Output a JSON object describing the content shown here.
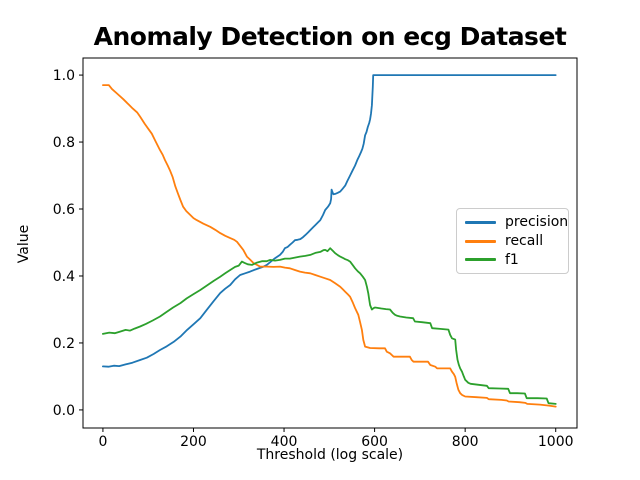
{
  "chart_data": {
    "type": "line",
    "title": "Anomaly Detection on ecg Dataset",
    "xlabel": "Threshold (log scale)",
    "ylabel": "Value",
    "xlim": [
      -44,
      1047
    ],
    "ylim": [
      -0.054,
      1.051
    ],
    "x_ticks": [
      0,
      200,
      400,
      600,
      800,
      1000
    ],
    "y_ticks": [
      0.0,
      0.2,
      0.4,
      0.6,
      0.8,
      1.0
    ],
    "grid": false,
    "legend": {
      "position": "center right",
      "entries": [
        "precision",
        "recall",
        "f1"
      ]
    },
    "series": [
      {
        "name": "precision",
        "color": "#1f77b4",
        "points": [
          [
            0,
            0.13
          ],
          [
            12,
            0.129
          ],
          [
            24,
            0.132
          ],
          [
            36,
            0.131
          ],
          [
            50,
            0.136
          ],
          [
            65,
            0.141
          ],
          [
            82,
            0.149
          ],
          [
            97,
            0.156
          ],
          [
            112,
            0.167
          ],
          [
            126,
            0.179
          ],
          [
            141,
            0.19
          ],
          [
            156,
            0.203
          ],
          [
            171,
            0.219
          ],
          [
            186,
            0.239
          ],
          [
            201,
            0.257
          ],
          [
            215,
            0.274
          ],
          [
            229,
            0.298
          ],
          [
            244,
            0.324
          ],
          [
            259,
            0.349
          ],
          [
            270,
            0.362
          ],
          [
            281,
            0.373
          ],
          [
            292,
            0.39
          ],
          [
            303,
            0.403
          ],
          [
            314,
            0.408
          ],
          [
            325,
            0.413
          ],
          [
            336,
            0.419
          ],
          [
            347,
            0.424
          ],
          [
            355,
            0.428
          ],
          [
            362,
            0.433
          ],
          [
            371,
            0.443
          ],
          [
            380,
            0.453
          ],
          [
            391,
            0.463
          ],
          [
            397,
            0.472
          ],
          [
            402,
            0.483
          ],
          [
            408,
            0.487
          ],
          [
            413,
            0.493
          ],
          [
            419,
            0.5
          ],
          [
            424,
            0.507
          ],
          [
            430,
            0.508
          ],
          [
            436,
            0.51
          ],
          [
            442,
            0.516
          ],
          [
            447,
            0.522
          ],
          [
            453,
            0.53
          ],
          [
            458,
            0.537
          ],
          [
            464,
            0.545
          ],
          [
            469,
            0.552
          ],
          [
            475,
            0.56
          ],
          [
            480,
            0.567
          ],
          [
            486,
            0.582
          ],
          [
            491,
            0.597
          ],
          [
            497,
            0.607
          ],
          [
            502,
            0.617
          ],
          [
            504,
            0.63
          ],
          [
            505,
            0.658
          ],
          [
            507,
            0.65
          ],
          [
            509,
            0.644
          ],
          [
            513,
            0.645
          ],
          [
            518,
            0.648
          ],
          [
            524,
            0.652
          ],
          [
            529,
            0.66
          ],
          [
            535,
            0.67
          ],
          [
            540,
            0.684
          ],
          [
            546,
            0.7
          ],
          [
            551,
            0.714
          ],
          [
            557,
            0.73
          ],
          [
            562,
            0.747
          ],
          [
            566,
            0.758
          ],
          [
            570,
            0.77
          ],
          [
            573,
            0.78
          ],
          [
            576,
            0.795
          ],
          [
            579,
            0.82
          ],
          [
            582,
            0.83
          ],
          [
            585,
            0.845
          ],
          [
            588,
            0.857
          ],
          [
            590,
            0.868
          ],
          [
            592,
            0.885
          ],
          [
            594,
            0.91
          ],
          [
            595,
            0.935
          ],
          [
            596,
            0.965
          ],
          [
            597,
            1.0
          ],
          [
            650,
            1.0
          ],
          [
            750,
            1.0
          ],
          [
            850,
            1.0
          ],
          [
            950,
            1.0
          ],
          [
            1000,
            1.0
          ]
        ]
      },
      {
        "name": "recall",
        "color": "#ff7f0e",
        "points": [
          [
            0,
            0.97
          ],
          [
            13,
            0.97
          ],
          [
            20,
            0.958
          ],
          [
            31,
            0.945
          ],
          [
            45,
            0.928
          ],
          [
            57,
            0.912
          ],
          [
            66,
            0.9
          ],
          [
            76,
            0.888
          ],
          [
            82,
            0.876
          ],
          [
            92,
            0.855
          ],
          [
            100,
            0.84
          ],
          [
            108,
            0.825
          ],
          [
            117,
            0.8
          ],
          [
            126,
            0.776
          ],
          [
            132,
            0.762
          ],
          [
            137,
            0.746
          ],
          [
            143,
            0.73
          ],
          [
            148,
            0.716
          ],
          [
            154,
            0.695
          ],
          [
            160,
            0.667
          ],
          [
            166,
            0.645
          ],
          [
            171,
            0.627
          ],
          [
            177,
            0.607
          ],
          [
            184,
            0.594
          ],
          [
            193,
            0.582
          ],
          [
            200,
            0.573
          ],
          [
            207,
            0.567
          ],
          [
            222,
            0.556
          ],
          [
            237,
            0.547
          ],
          [
            248,
            0.538
          ],
          [
            259,
            0.528
          ],
          [
            270,
            0.52
          ],
          [
            281,
            0.513
          ],
          [
            290,
            0.508
          ],
          [
            296,
            0.502
          ],
          [
            303,
            0.49
          ],
          [
            310,
            0.478
          ],
          [
            318,
            0.458
          ],
          [
            325,
            0.449
          ],
          [
            332,
            0.439
          ],
          [
            340,
            0.433
          ],
          [
            347,
            0.428
          ],
          [
            362,
            0.428
          ],
          [
            377,
            0.427
          ],
          [
            391,
            0.428
          ],
          [
            402,
            0.425
          ],
          [
            413,
            0.423
          ],
          [
            424,
            0.418
          ],
          [
            435,
            0.413
          ],
          [
            446,
            0.41
          ],
          [
            458,
            0.408
          ],
          [
            469,
            0.403
          ],
          [
            480,
            0.398
          ],
          [
            491,
            0.393
          ],
          [
            502,
            0.388
          ],
          [
            513,
            0.378
          ],
          [
            524,
            0.368
          ],
          [
            530,
            0.36
          ],
          [
            535,
            0.353
          ],
          [
            541,
            0.345
          ],
          [
            546,
            0.338
          ],
          [
            552,
            0.32
          ],
          [
            557,
            0.304
          ],
          [
            564,
            0.284
          ],
          [
            568,
            0.262
          ],
          [
            572,
            0.239
          ],
          [
            575,
            0.209
          ],
          [
            579,
            0.189
          ],
          [
            590,
            0.185
          ],
          [
            610,
            0.184
          ],
          [
            623,
            0.184
          ],
          [
            627,
            0.174
          ],
          [
            634,
            0.169
          ],
          [
            638,
            0.164
          ],
          [
            642,
            0.159
          ],
          [
            660,
            0.159
          ],
          [
            678,
            0.159
          ],
          [
            682,
            0.149
          ],
          [
            686,
            0.144
          ],
          [
            700,
            0.144
          ],
          [
            718,
            0.144
          ],
          [
            723,
            0.134
          ],
          [
            734,
            0.129
          ],
          [
            738,
            0.124
          ],
          [
            755,
            0.124
          ],
          [
            767,
            0.124
          ],
          [
            771,
            0.114
          ],
          [
            775,
            0.107
          ],
          [
            778,
            0.099
          ],
          [
            781,
            0.08
          ],
          [
            785,
            0.06
          ],
          [
            789,
            0.05
          ],
          [
            793,
            0.045
          ],
          [
            800,
            0.04
          ],
          [
            825,
            0.038
          ],
          [
            848,
            0.036
          ],
          [
            852,
            0.032
          ],
          [
            880,
            0.03
          ],
          [
            892,
            0.028
          ],
          [
            896,
            0.025
          ],
          [
            920,
            0.023
          ],
          [
            933,
            0.021
          ],
          [
            937,
            0.018
          ],
          [
            965,
            0.016
          ],
          [
            985,
            0.013
          ],
          [
            1000,
            0.01
          ]
        ]
      },
      {
        "name": "f1",
        "color": "#2ca02c",
        "points": [
          [
            0,
            0.227
          ],
          [
            14,
            0.231
          ],
          [
            26,
            0.229
          ],
          [
            38,
            0.234
          ],
          [
            50,
            0.239
          ],
          [
            60,
            0.237
          ],
          [
            70,
            0.243
          ],
          [
            82,
            0.249
          ],
          [
            95,
            0.257
          ],
          [
            110,
            0.267
          ],
          [
            126,
            0.279
          ],
          [
            140,
            0.292
          ],
          [
            155,
            0.306
          ],
          [
            171,
            0.319
          ],
          [
            185,
            0.333
          ],
          [
            200,
            0.346
          ],
          [
            215,
            0.358
          ],
          [
            230,
            0.372
          ],
          [
            245,
            0.386
          ],
          [
            259,
            0.398
          ],
          [
            270,
            0.408
          ],
          [
            281,
            0.418
          ],
          [
            292,
            0.427
          ],
          [
            300,
            0.431
          ],
          [
            307,
            0.443
          ],
          [
            313,
            0.439
          ],
          [
            320,
            0.435
          ],
          [
            329,
            0.433
          ],
          [
            340,
            0.44
          ],
          [
            351,
            0.444
          ],
          [
            362,
            0.444
          ],
          [
            369,
            0.448
          ],
          [
            380,
            0.446
          ],
          [
            391,
            0.448
          ],
          [
            402,
            0.452
          ],
          [
            413,
            0.452
          ],
          [
            424,
            0.455
          ],
          [
            435,
            0.458
          ],
          [
            447,
            0.46
          ],
          [
            458,
            0.463
          ],
          [
            469,
            0.469
          ],
          [
            480,
            0.472
          ],
          [
            487,
            0.477
          ],
          [
            491,
            0.478
          ],
          [
            496,
            0.474
          ],
          [
            502,
            0.483
          ],
          [
            508,
            0.475
          ],
          [
            513,
            0.468
          ],
          [
            519,
            0.462
          ],
          [
            524,
            0.458
          ],
          [
            530,
            0.454
          ],
          [
            535,
            0.45
          ],
          [
            541,
            0.447
          ],
          [
            546,
            0.443
          ],
          [
            552,
            0.432
          ],
          [
            557,
            0.423
          ],
          [
            563,
            0.414
          ],
          [
            568,
            0.408
          ],
          [
            574,
            0.398
          ],
          [
            579,
            0.388
          ],
          [
            583,
            0.368
          ],
          [
            586,
            0.348
          ],
          [
            588,
            0.33
          ],
          [
            590,
            0.313
          ],
          [
            594,
            0.3
          ],
          [
            598,
            0.304
          ],
          [
            601,
            0.306
          ],
          [
            615,
            0.303
          ],
          [
            625,
            0.301
          ],
          [
            634,
            0.3
          ],
          [
            640,
            0.29
          ],
          [
            645,
            0.284
          ],
          [
            650,
            0.281
          ],
          [
            656,
            0.279
          ],
          [
            670,
            0.276
          ],
          [
            685,
            0.274
          ],
          [
            689,
            0.264
          ],
          [
            705,
            0.262
          ],
          [
            723,
            0.259
          ],
          [
            727,
            0.244
          ],
          [
            745,
            0.242
          ],
          [
            763,
            0.24
          ],
          [
            767,
            0.224
          ],
          [
            771,
            0.214
          ],
          [
            778,
            0.21
          ],
          [
            780,
            0.18
          ],
          [
            783,
            0.15
          ],
          [
            786,
            0.135
          ],
          [
            789,
            0.124
          ],
          [
            793,
            0.114
          ],
          [
            797,
            0.1
          ],
          [
            800,
            0.09
          ],
          [
            807,
            0.081
          ],
          [
            812,
            0.078
          ],
          [
            830,
            0.075
          ],
          [
            848,
            0.072
          ],
          [
            852,
            0.065
          ],
          [
            875,
            0.064
          ],
          [
            895,
            0.063
          ],
          [
            899,
            0.05
          ],
          [
            915,
            0.05
          ],
          [
            932,
            0.049
          ],
          [
            936,
            0.035
          ],
          [
            960,
            0.035
          ],
          [
            980,
            0.034
          ],
          [
            984,
            0.02
          ],
          [
            1000,
            0.018
          ]
        ]
      }
    ]
  }
}
